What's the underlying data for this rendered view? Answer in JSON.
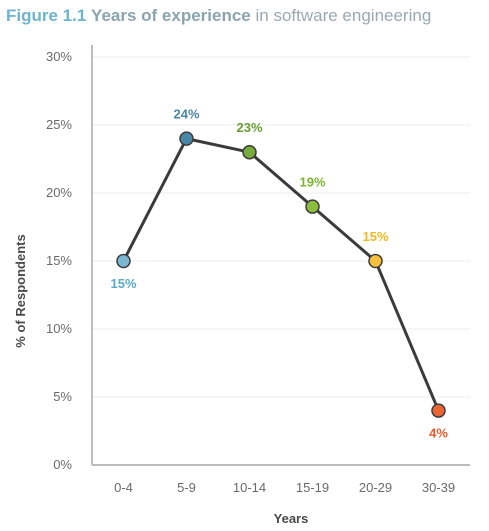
{
  "title": {
    "figure": "Figure 1.1",
    "bold": "Years of experience",
    "rest": "in software engineering"
  },
  "chart_data": {
    "type": "line",
    "categories": [
      "0-4",
      "5-9",
      "10-14",
      "15-19",
      "20-29",
      "30-39"
    ],
    "values": [
      15,
      24,
      23,
      19,
      15,
      4
    ],
    "data_labels": [
      "15%",
      "24%",
      "23%",
      "19%",
      "15%",
      "4%"
    ],
    "point_colors": [
      "#7ab7d1",
      "#4a86a6",
      "#77ab3a",
      "#8bbf3b",
      "#f7c23a",
      "#ea6436"
    ],
    "label_colors": [
      "#5da9c7",
      "#4a86a6",
      "#6a9e34",
      "#7ab32f",
      "#f2b820",
      "#e55b2c"
    ],
    "label_positions": [
      "below",
      "above",
      "above",
      "above",
      "above",
      "below"
    ],
    "line_color": "#3b3b3b",
    "yticks": [
      0,
      5,
      10,
      15,
      20,
      25,
      30
    ],
    "ytick_labels": [
      "0%",
      "5%",
      "10%",
      "15%",
      "20%",
      "25%",
      "30%"
    ],
    "ylim": [
      0,
      30
    ],
    "xlabel": "Years",
    "ylabel": "% of Respondents",
    "grid": true
  }
}
